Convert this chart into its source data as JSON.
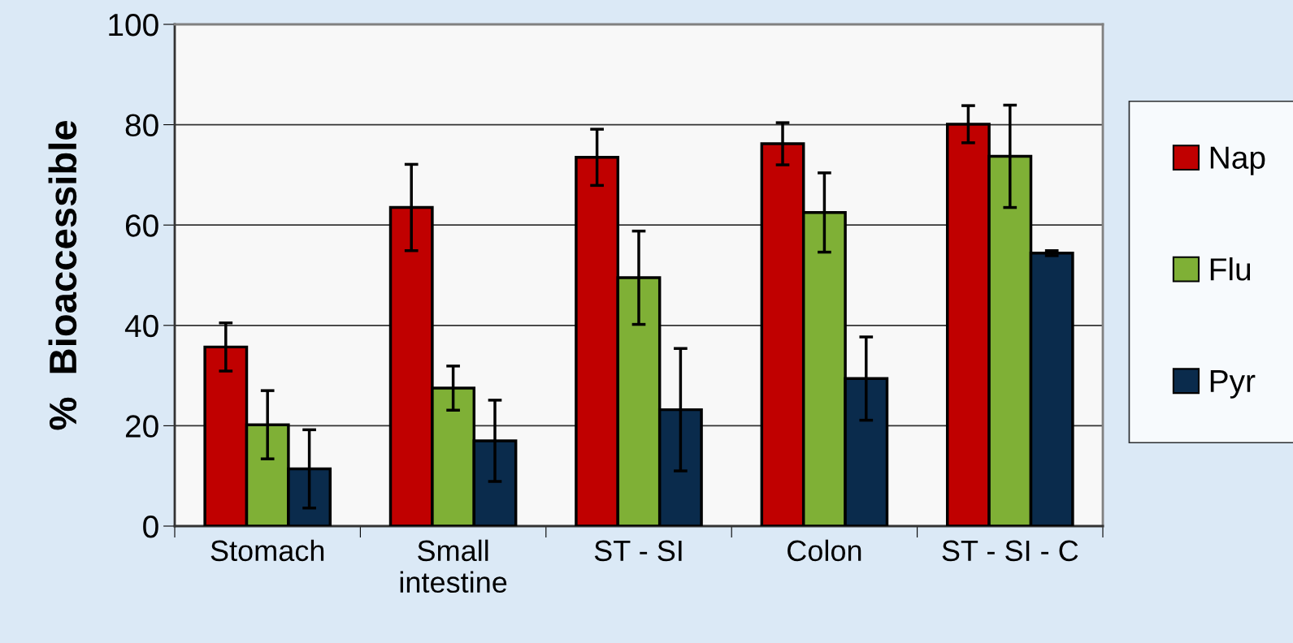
{
  "chart_data": {
    "type": "bar",
    "ylabel": "%  Bioaccessible",
    "categories": [
      "Stomach",
      "Small\nintestine",
      "ST - SI",
      "Colon",
      "ST - SI - C"
    ],
    "series": [
      {
        "name": "Nap",
        "color": "#c00000",
        "values": [
          35.7,
          63.5,
          73.5,
          76.2,
          80.1
        ],
        "errors": [
          4.8,
          8.6,
          5.6,
          4.2,
          3.7
        ]
      },
      {
        "name": "Flu",
        "color": "#7fb036",
        "values": [
          20.2,
          27.5,
          49.5,
          62.5,
          73.7
        ],
        "errors": [
          6.8,
          4.4,
          9.3,
          7.9,
          10.2
        ]
      },
      {
        "name": "Pyr",
        "color": "#0a2b4c",
        "values": [
          11.4,
          17.0,
          23.2,
          29.4,
          54.4
        ],
        "errors": [
          7.8,
          8.1,
          12.2,
          8.3,
          0.5
        ]
      }
    ],
    "ylim": [
      0,
      100
    ],
    "yticks": [
      0,
      20,
      40,
      60,
      80,
      100
    ],
    "grid": "y",
    "legend": "right"
  }
}
